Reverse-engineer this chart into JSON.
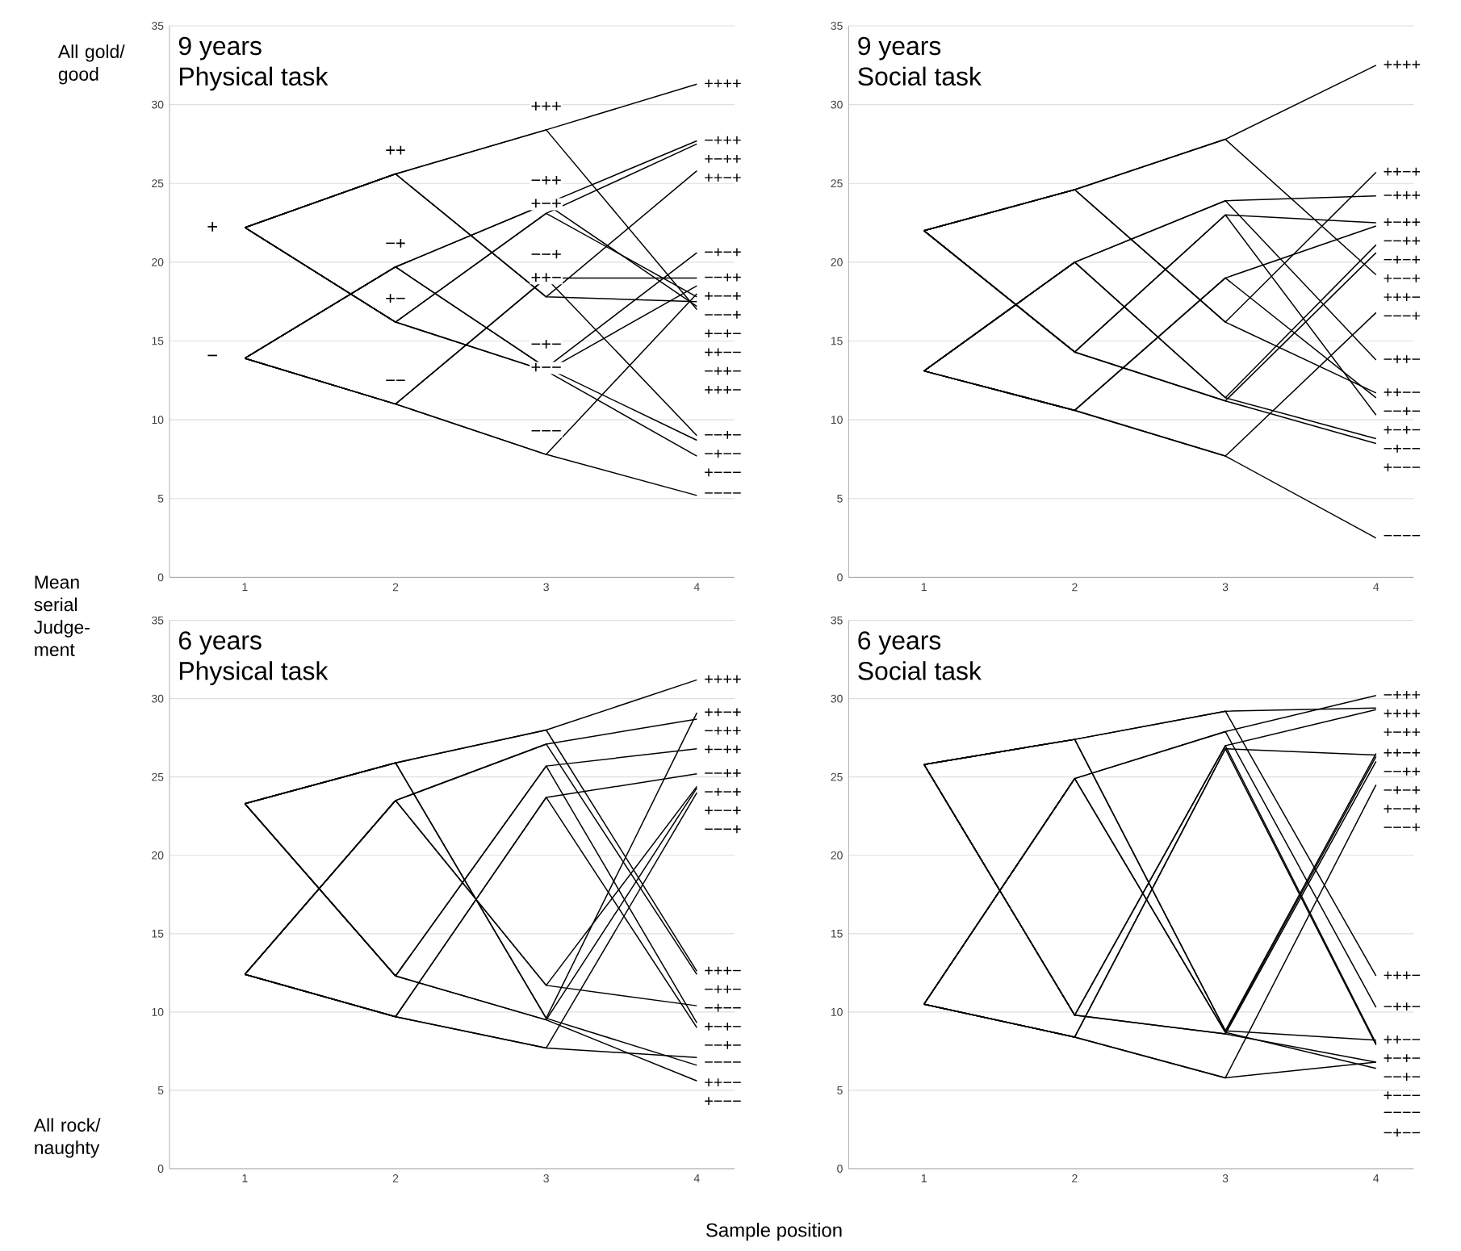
{
  "chart_data": [
    {
      "type": "line",
      "title": "9 years",
      "subtitle": "Physical task",
      "ylabel": "Mean serial Judge-ment",
      "categories": [
        "1",
        "2",
        "3",
        "4"
      ],
      "ylim": [
        0,
        35
      ],
      "yticks": [
        0,
        5,
        10,
        15,
        20,
        25,
        30,
        35
      ],
      "grid": "y",
      "series": [
        {
          "name": "++++",
          "color": "#000000",
          "values": [
            22.2,
            25.6,
            28.4,
            31.3
          ]
        },
        {
          "name": "+++−",
          "color": "#000000",
          "values": [
            22.2,
            25.6,
            28.4,
            17.0
          ]
        },
        {
          "name": "++−+",
          "color": "#000000",
          "values": [
            22.2,
            25.6,
            17.8,
            25.8
          ]
        },
        {
          "name": "++−−",
          "color": "#000000",
          "values": [
            22.2,
            25.6,
            17.8,
            17.5
          ]
        },
        {
          "name": "+−++",
          "color": "#000000",
          "values": [
            22.2,
            16.2,
            23.1,
            27.5
          ]
        },
        {
          "name": "+−+−",
          "color": "#000000",
          "values": [
            22.2,
            16.2,
            23.1,
            17.8
          ]
        },
        {
          "name": "+−−+",
          "color": "#000000",
          "values": [
            22.2,
            16.2,
            13.1,
            18.5
          ]
        },
        {
          "name": "+−−−",
          "color": "#000000",
          "values": [
            22.2,
            16.2,
            13.1,
            7.7
          ]
        },
        {
          "name": "−+++",
          "color": "#000000",
          "values": [
            13.9,
            19.7,
            23.7,
            27.7
          ]
        },
        {
          "name": "−++−",
          "color": "#000000",
          "values": [
            13.9,
            19.7,
            23.7,
            17.2
          ]
        },
        {
          "name": "−+−+",
          "color": "#000000",
          "values": [
            13.9,
            19.7,
            13.3,
            20.6
          ]
        },
        {
          "name": "−+−−",
          "color": "#000000",
          "values": [
            13.9,
            19.7,
            13.3,
            8.7
          ]
        },
        {
          "name": "−−++",
          "color": "#000000",
          "values": [
            13.9,
            11.0,
            19.0,
            19.0
          ]
        },
        {
          "name": "−−+−",
          "color": "#000000",
          "values": [
            13.9,
            11.0,
            19.0,
            9.0
          ]
        },
        {
          "name": "−−−+",
          "color": "#000000",
          "values": [
            13.9,
            11.0,
            7.8,
            18.0
          ]
        },
        {
          "name": "−−−−",
          "color": "#000000",
          "values": [
            13.9,
            11.0,
            7.8,
            5.2
          ]
        }
      ],
      "annotations": [
        "All gold/ good",
        {
          "text": "+",
          "x": "1",
          "y": 22.2
        },
        {
          "text": "−",
          "x": "1",
          "y": 13.9
        },
        {
          "text": "++",
          "x": "2",
          "y": 25.6
        },
        {
          "text": "−+",
          "x": "2",
          "y": 19.7
        },
        {
          "text": "+−",
          "x": "2",
          "y": 16.2
        },
        {
          "text": "−−",
          "x": "2",
          "y": 11.0
        },
        {
          "text": "+++",
          "x": "3",
          "y": 28.4
        },
        {
          "text": "−++",
          "x": "3",
          "y": 23.7
        },
        {
          "text": "+−+",
          "x": "3",
          "y": 23.1
        },
        {
          "text": "−−+",
          "x": "3",
          "y": 19.0
        },
        {
          "text": "++−",
          "x": "3",
          "y": 17.8
        },
        {
          "text": "−+−",
          "x": "3",
          "y": 13.3
        },
        {
          "text": "+−−",
          "x": "3",
          "y": 13.1
        },
        {
          "text": "−−−",
          "x": "3",
          "y": 7.8
        }
      ]
    },
    {
      "type": "line",
      "title": "9 years",
      "subtitle": "Social task",
      "categories": [
        "1",
        "2",
        "3",
        "4"
      ],
      "ylim": [
        0,
        35
      ],
      "yticks": [
        0,
        5,
        10,
        15,
        20,
        25,
        30,
        35
      ],
      "grid": "y",
      "series": [
        {
          "name": "++++",
          "color": "#000000",
          "values": [
            22.0,
            24.6,
            27.8,
            32.5
          ]
        },
        {
          "name": "+++−",
          "color": "#000000",
          "values": [
            22.0,
            24.6,
            27.8,
            19.2
          ]
        },
        {
          "name": "++−+",
          "color": "#000000",
          "values": [
            22.0,
            24.6,
            16.2,
            25.7
          ]
        },
        {
          "name": "++−−",
          "color": "#000000",
          "values": [
            22.0,
            24.6,
            16.2,
            11.7
          ]
        },
        {
          "name": "+−++",
          "color": "#000000",
          "values": [
            22.0,
            14.3,
            23.0,
            22.5
          ]
        },
        {
          "name": "+−+−",
          "color": "#000000",
          "values": [
            22.0,
            14.3,
            23.0,
            10.3
          ]
        },
        {
          "name": "+−−+",
          "color": "#000000",
          "values": [
            22.0,
            14.3,
            11.2,
            20.6
          ]
        },
        {
          "name": "+−−−",
          "color": "#000000",
          "values": [
            22.0,
            14.3,
            11.2,
            8.5
          ]
        },
        {
          "name": "−+++",
          "color": "#000000",
          "values": [
            13.1,
            20.0,
            23.9,
            24.2
          ]
        },
        {
          "name": "−++−",
          "color": "#000000",
          "values": [
            13.1,
            20.0,
            23.9,
            13.8
          ]
        },
        {
          "name": "−+−+",
          "color": "#000000",
          "values": [
            13.1,
            20.0,
            11.4,
            21.1
          ]
        },
        {
          "name": "−+−−",
          "color": "#000000",
          "values": [
            13.1,
            20.0,
            11.4,
            8.8
          ]
        },
        {
          "name": "−−++",
          "color": "#000000",
          "values": [
            13.1,
            10.6,
            19.0,
            22.3
          ]
        },
        {
          "name": "−−+−",
          "color": "#000000",
          "values": [
            13.1,
            10.6,
            19.0,
            11.4
          ]
        },
        {
          "name": "−−−+",
          "color": "#000000",
          "values": [
            13.1,
            10.6,
            7.7,
            16.8
          ]
        },
        {
          "name": "−−−−",
          "color": "#000000",
          "values": [
            13.1,
            10.6,
            7.7,
            2.5
          ]
        }
      ]
    },
    {
      "type": "line",
      "title": "6 years",
      "subtitle": "Physical task",
      "xlabel": "Sample position",
      "categories": [
        "1",
        "2",
        "3",
        "4"
      ],
      "ylim": [
        0,
        35
      ],
      "yticks": [
        0,
        5,
        10,
        15,
        20,
        25,
        30,
        35
      ],
      "grid": "y",
      "series": [
        {
          "name": "++++",
          "color": "#000000",
          "values": [
            23.3,
            25.9,
            28.0,
            31.2
          ]
        },
        {
          "name": "+++−",
          "color": "#000000",
          "values": [
            23.3,
            25.9,
            28.0,
            12.6
          ]
        },
        {
          "name": "++−+",
          "color": "#000000",
          "values": [
            23.3,
            25.9,
            9.6,
            29.1
          ]
        },
        {
          "name": "++−−",
          "color": "#000000",
          "values": [
            23.3,
            25.9,
            9.6,
            6.6
          ]
        },
        {
          "name": "+−++",
          "color": "#000000",
          "values": [
            23.3,
            12.3,
            25.7,
            26.8
          ]
        },
        {
          "name": "+−+−",
          "color": "#000000",
          "values": [
            23.3,
            12.3,
            25.7,
            9.3
          ]
        },
        {
          "name": "+−−+",
          "color": "#000000",
          "values": [
            23.3,
            12.3,
            9.5,
            24.3
          ]
        },
        {
          "name": "+−−−",
          "color": "#000000",
          "values": [
            23.3,
            12.3,
            9.5,
            5.6
          ]
        },
        {
          "name": "−+++",
          "color": "#000000",
          "values": [
            12.4,
            23.5,
            27.1,
            28.7
          ]
        },
        {
          "name": "−++−",
          "color": "#000000",
          "values": [
            12.4,
            23.5,
            27.1,
            12.4
          ]
        },
        {
          "name": "−+−+",
          "color": "#000000",
          "values": [
            12.4,
            23.5,
            11.7,
            24.4
          ]
        },
        {
          "name": "−+−−",
          "color": "#000000",
          "values": [
            12.4,
            23.5,
            11.7,
            10.4
          ]
        },
        {
          "name": "−−++",
          "color": "#000000",
          "values": [
            12.4,
            9.7,
            23.7,
            25.2
          ]
        },
        {
          "name": "−−+−",
          "color": "#000000",
          "values": [
            12.4,
            9.7,
            23.7,
            9.0
          ]
        },
        {
          "name": "−−−+",
          "color": "#000000",
          "values": [
            12.4,
            9.7,
            7.7,
            24.0
          ]
        },
        {
          "name": "−−−−",
          "color": "#000000",
          "values": [
            12.4,
            9.7,
            7.7,
            7.1
          ]
        }
      ],
      "annotations": [
        "All rock/ naughty"
      ]
    },
    {
      "type": "line",
      "title": "6 years",
      "subtitle": "Social task",
      "categories": [
        "1",
        "2",
        "3",
        "4"
      ],
      "ylim": [
        0,
        35
      ],
      "yticks": [
        0,
        5,
        10,
        15,
        20,
        25,
        30,
        35
      ],
      "grid": "y",
      "series": [
        {
          "name": "++++",
          "color": "#000000",
          "values": [
            25.8,
            27.4,
            29.2,
            29.4
          ]
        },
        {
          "name": "+++−",
          "color": "#000000",
          "values": [
            25.8,
            27.4,
            29.2,
            12.3
          ]
        },
        {
          "name": "++−+",
          "color": "#000000",
          "values": [
            25.8,
            27.4,
            8.8,
            26.5
          ]
        },
        {
          "name": "++−−",
          "color": "#000000",
          "values": [
            25.8,
            27.4,
            8.8,
            8.2
          ]
        },
        {
          "name": "+−++",
          "color": "#000000",
          "values": [
            25.8,
            9.8,
            27.0,
            29.3
          ]
        },
        {
          "name": "+−+−",
          "color": "#000000",
          "values": [
            25.8,
            9.8,
            27.0,
            8.0
          ]
        },
        {
          "name": "+−−+",
          "color": "#000000",
          "values": [
            25.8,
            9.8,
            8.6,
            26.0
          ]
        },
        {
          "name": "+−−−",
          "color": "#000000",
          "values": [
            25.8,
            9.8,
            8.6,
            6.8
          ]
        },
        {
          "name": "−+++",
          "color": "#000000",
          "values": [
            10.5,
            24.9,
            27.9,
            30.2
          ]
        },
        {
          "name": "−++−",
          "color": "#000000",
          "values": [
            10.5,
            24.9,
            27.9,
            10.3
          ]
        },
        {
          "name": "−+−+",
          "color": "#000000",
          "values": [
            10.5,
            24.9,
            8.7,
            26.3
          ]
        },
        {
          "name": "−+−−",
          "color": "#000000",
          "values": [
            10.5,
            24.9,
            8.7,
            6.4
          ]
        },
        {
          "name": "−−++",
          "color": "#000000",
          "values": [
            10.5,
            8.4,
            26.8,
            26.4
          ]
        },
        {
          "name": "−−+−",
          "color": "#000000",
          "values": [
            10.5,
            8.4,
            26.8,
            7.9
          ]
        },
        {
          "name": "−−−+",
          "color": "#000000",
          "values": [
            10.5,
            8.4,
            5.8,
            24.5
          ]
        },
        {
          "name": "−−−−",
          "color": "#000000",
          "values": [
            10.5,
            8.4,
            5.8,
            6.8
          ]
        }
      ]
    }
  ]
}
